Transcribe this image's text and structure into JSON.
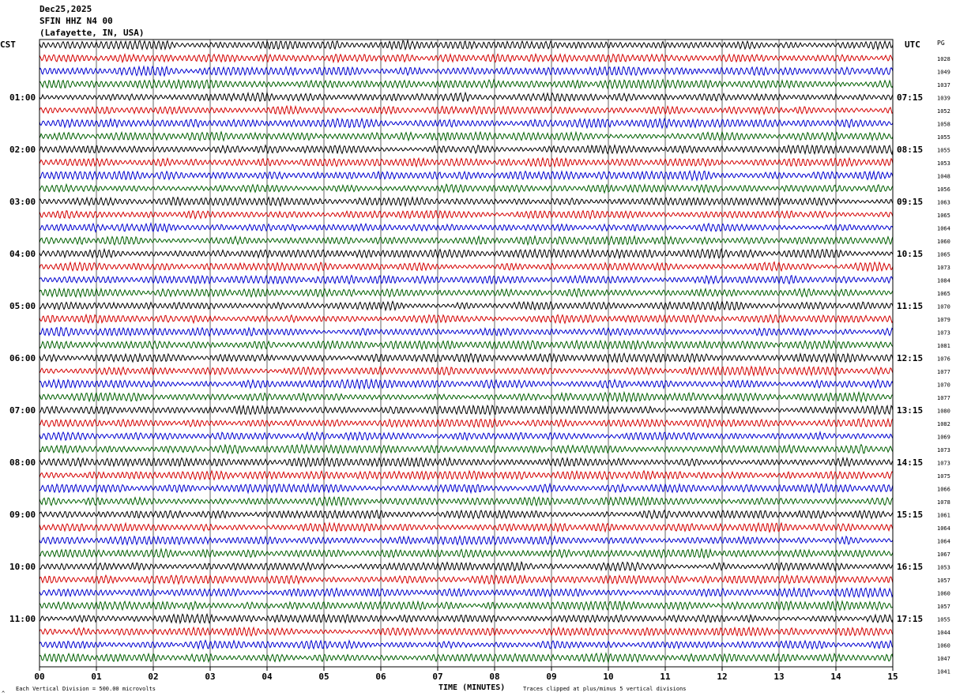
{
  "header": {
    "date": "Dec25,2025",
    "station": "SFIN HHZ N4 00",
    "location": "(Lafayette, IN, USA)"
  },
  "left_tz": "CST",
  "right_tz": "UTC",
  "right_col_header": "PG",
  "footer": {
    "division_note": "Each Vertical Division =  500.00 microvolts",
    "xlabel": "TIME (MINUTES)",
    "clip_note": "Traces clipped at plus/minus 5 vertical divisions",
    "corner_mark": "^"
  },
  "colors": [
    "#000000",
    "#d40000",
    "#0000d0",
    "#006000"
  ],
  "chart_data": {
    "type": "line",
    "title": "",
    "xlabel": "TIME (MINUTES)",
    "ylabel": "",
    "xlim": [
      0,
      15
    ],
    "x_ticks": [
      "00",
      "01",
      "02",
      "03",
      "04",
      "05",
      "06",
      "07",
      "08",
      "09",
      "10",
      "11",
      "12",
      "13",
      "14",
      "15"
    ],
    "trace_minutes": 15,
    "rows_per_hour": 4,
    "left_hour_labels": [
      "01:00",
      "02:00",
      "03:00",
      "04:00",
      "05:00",
      "06:00",
      "07:00",
      "08:00",
      "09:00",
      "10:00",
      "11:00"
    ],
    "right_hour_labels": [
      "07:15",
      "08:15",
      "09:15",
      "10:15",
      "11:15",
      "12:15",
      "13:15",
      "14:15",
      "15:15",
      "16:15",
      "17:15"
    ],
    "row_values": [
      1028,
      1049,
      1037,
      1039,
      1052,
      1058,
      1055,
      1055,
      1053,
      1048,
      1056,
      1063,
      1065,
      1064,
      1060,
      1065,
      1073,
      1084,
      1065,
      1070,
      1079,
      1073,
      1081,
      1076,
      1077,
      1070,
      1077,
      1080,
      1082,
      1069,
      1073,
      1073,
      1075,
      1066,
      1078,
      1061,
      1064,
      1064,
      1067,
      1053,
      1057,
      1060,
      1057,
      1055,
      1044,
      1060,
      1047,
      1041
    ]
  }
}
